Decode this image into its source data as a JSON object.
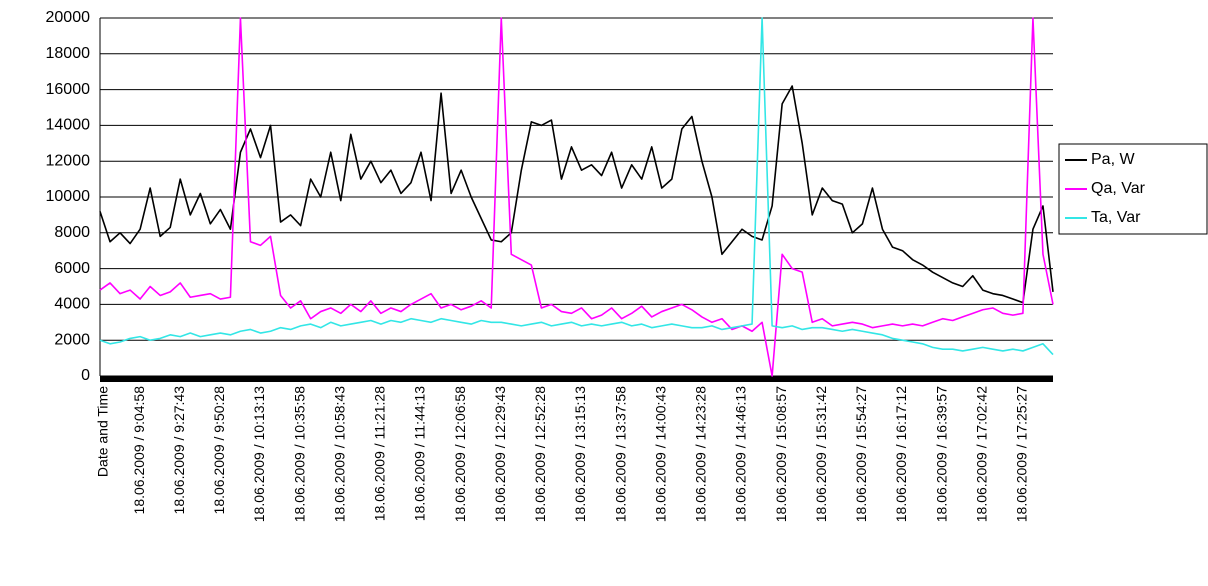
{
  "chart_data": {
    "type": "line",
    "x_label": "Date and Time",
    "categories": [
      null,
      null,
      null,
      null,
      "18.06.2009 / 9:04:58",
      null,
      null,
      null,
      "18.06.2009 / 9:27:43",
      null,
      null,
      null,
      "18.06.2009 / 9:50:28",
      null,
      null,
      null,
      "18.06.2009 / 10:13:13",
      null,
      null,
      null,
      "18.06.2009 / 10:35:58",
      null,
      null,
      null,
      "18.06.2009 / 10:58:43",
      null,
      null,
      null,
      "18.06.2009 / 11:21:28",
      null,
      null,
      null,
      "18.06.2009 / 11:44:13",
      null,
      null,
      null,
      "18.06.2009 / 12:06:58",
      null,
      null,
      null,
      "18.06.2009 / 12:29:43",
      null,
      null,
      null,
      "18.06.2009 / 12:52:28",
      null,
      null,
      null,
      "18.06.2009 / 13:15:13",
      null,
      null,
      null,
      "18.06.2009 / 13:37:58",
      null,
      null,
      null,
      "18.06.2009 / 14:00:43",
      null,
      null,
      null,
      "18.06.2009 / 14:23:28",
      null,
      null,
      null,
      "18.06.2009 / 14:46:13",
      null,
      null,
      null,
      "18.06.2009 / 15:08:57",
      null,
      null,
      null,
      "18.06.2009 / 15:31:42",
      null,
      null,
      null,
      "18.06.2009 / 15:54:27",
      null,
      null,
      null,
      "18.06.2009 / 16:17:12",
      null,
      null,
      null,
      "18.06.2009 / 16:39:57",
      null,
      null,
      null,
      "18.06.2009 / 17:02:42",
      null,
      null,
      null,
      "18.06.2009 / 17:25:27",
      null,
      null,
      null
    ],
    "series": [
      {
        "name": "Pa, W",
        "color": "#000000",
        "values": [
          9200,
          7500,
          8000,
          7400,
          8200,
          10500,
          7800,
          8300,
          11000,
          9000,
          10200,
          8500,
          9300,
          8200,
          12500,
          13800,
          12200,
          14000,
          8600,
          9000,
          8400,
          11000,
          10000,
          12500,
          9800,
          13500,
          11000,
          12000,
          10800,
          11500,
          10200,
          10800,
          12500,
          9800,
          15800,
          10200,
          11500,
          10000,
          8800,
          7600,
          7500,
          8000,
          11500,
          14200,
          14000,
          14300,
          11000,
          12800,
          11500,
          11800,
          11200,
          12500,
          10500,
          11800,
          11000,
          12800,
          10500,
          11000,
          13800,
          14500,
          12000,
          10000,
          6800,
          7500,
          8200,
          7800,
          7600,
          9500,
          15200,
          16200,
          13000,
          9000,
          10500,
          9800,
          9600,
          8000,
          8500,
          10500,
          8200,
          7200,
          7000,
          6500,
          6200,
          5800,
          5500,
          5200,
          5000,
          5600,
          4800,
          4600,
          4500,
          4300,
          4100,
          8200,
          9500,
          4700
        ]
      },
      {
        "name": "Qa, Var",
        "color": "#ff00ff",
        "values": [
          4800,
          5200,
          4600,
          4800,
          4300,
          5000,
          4500,
          4700,
          5200,
          4400,
          4500,
          4600,
          4300,
          4400,
          20000,
          7500,
          7300,
          7800,
          4500,
          3800,
          4200,
          3200,
          3600,
          3800,
          3500,
          4000,
          3600,
          4200,
          3500,
          3800,
          3600,
          4000,
          4300,
          4600,
          3800,
          4000,
          3700,
          3900,
          4200,
          3800,
          20000,
          6800,
          6500,
          6200,
          3800,
          4000,
          3600,
          3500,
          3800,
          3200,
          3400,
          3800,
          3200,
          3500,
          3900,
          3300,
          3600,
          3800,
          4000,
          3700,
          3300,
          3000,
          3200,
          2600,
          2800,
          2500,
          3000,
          0,
          6800,
          6000,
          5800,
          3000,
          3200,
          2800,
          2900,
          3000,
          2900,
          2700,
          2800,
          2900,
          2800,
          2900,
          2800,
          3000,
          3200,
          3100,
          3300,
          3500,
          3700,
          3800,
          3500,
          3400,
          3500,
          20000,
          6800,
          4000
        ]
      },
      {
        "name": "Ta, Var",
        "color": "#33e6e6",
        "values": [
          2000,
          1800,
          1900,
          2100,
          2200,
          2000,
          2100,
          2300,
          2200,
          2400,
          2200,
          2300,
          2400,
          2300,
          2500,
          2600,
          2400,
          2500,
          2700,
          2600,
          2800,
          2900,
          2700,
          3000,
          2800,
          2900,
          3000,
          3100,
          2900,
          3100,
          3000,
          3200,
          3100,
          3000,
          3200,
          3100,
          3000,
          2900,
          3100,
          3000,
          3000,
          2900,
          2800,
          2900,
          3000,
          2800,
          2900,
          3000,
          2800,
          2900,
          2800,
          2900,
          3000,
          2800,
          2900,
          2700,
          2800,
          2900,
          2800,
          2700,
          2700,
          2800,
          2600,
          2700,
          2800,
          2900,
          20000,
          2800,
          2700,
          2800,
          2600,
          2700,
          2700,
          2600,
          2500,
          2600,
          2500,
          2400,
          2300,
          2100,
          2000,
          1900,
          1800,
          1600,
          1500,
          1500,
          1400,
          1500,
          1600,
          1500,
          1400,
          1500,
          1400,
          1600,
          1800,
          1200
        ]
      }
    ],
    "ylim": [
      0,
      20000
    ],
    "yticks": [
      0,
      2000,
      4000,
      6000,
      8000,
      10000,
      12000,
      14000,
      16000,
      18000,
      20000
    ],
    "grid": true,
    "legend": "right"
  }
}
